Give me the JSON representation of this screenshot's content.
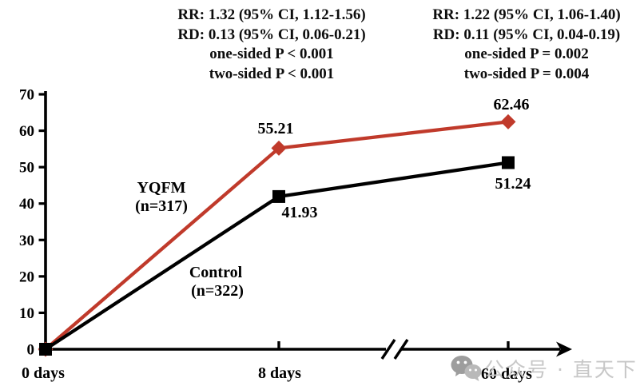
{
  "stat_annotations": [
    {
      "rr": "RR: 1.32 (95% CI, 1.12-1.56)",
      "rd": "RD: 0.13 (95% CI, 0.06-0.21)",
      "p_one_sided": "one-sided P < 0.001",
      "p_two_sided": "two-sided P < 0.001"
    },
    {
      "rr": "RR: 1.22 (95% CI, 1.06-1.40)",
      "rd": "RD: 0.11 (95% CI, 0.04-0.19)",
      "p_one_sided": "one-sided P = 0.002",
      "p_two_sided": "two-sided P = 0.004"
    }
  ],
  "chart_data": {
    "type": "line",
    "categories": [
      "0 days",
      "8 days",
      "60 days"
    ],
    "x_values_days": [
      0,
      8,
      60
    ],
    "series": [
      {
        "name": "YQFM",
        "sample_size_label": "(n=317)",
        "color": "#c03a2b",
        "marker": "diamond",
        "values": [
          0,
          55.21,
          62.46
        ]
      },
      {
        "name": "Control",
        "sample_size_label": "(n=322)",
        "color": "#000000",
        "marker": "square",
        "values": [
          0,
          41.93,
          51.24
        ]
      }
    ],
    "title": "",
    "xlabel": "",
    "ylabel": "",
    "ylim": [
      0,
      70
    ],
    "yticks": [
      0,
      10,
      20,
      30,
      40,
      50,
      60,
      70
    ],
    "x_axis_break_between": [
      "8 days",
      "60 days"
    ],
    "grid": false,
    "legend": "inline-series-labels"
  },
  "watermark": {
    "icon": "wechat-logo",
    "text": "公众号 · 直天下"
  }
}
